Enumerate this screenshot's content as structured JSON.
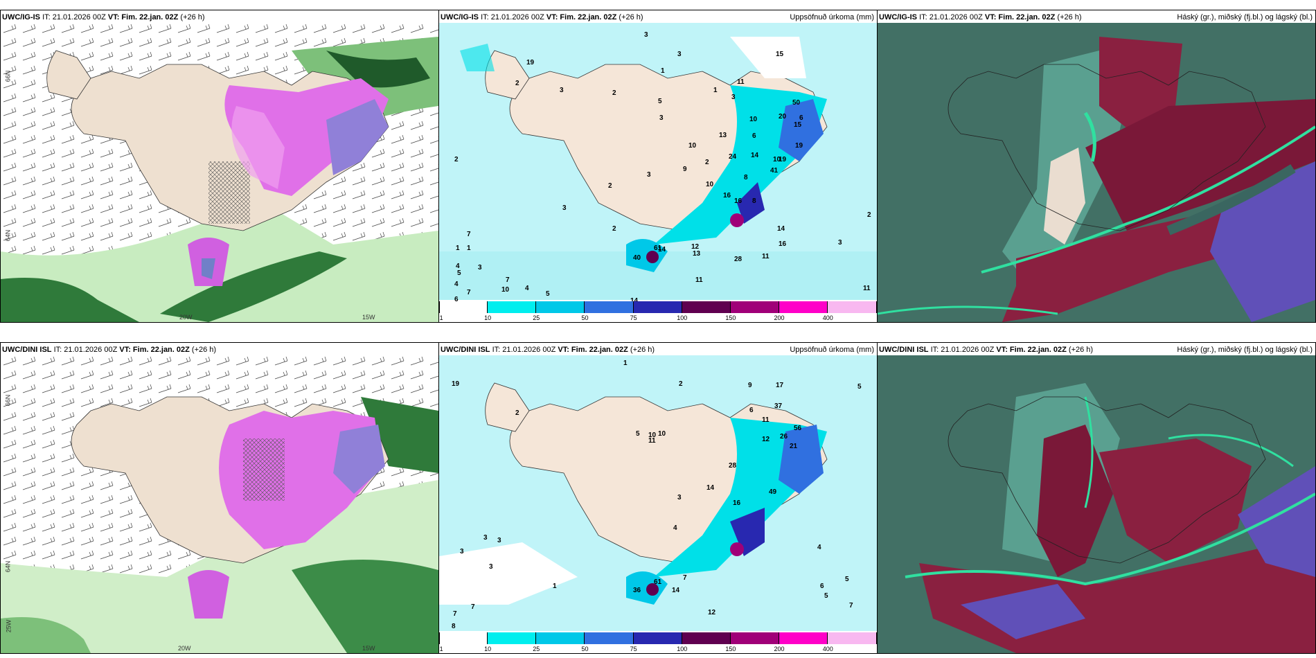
{
  "rows": [
    {
      "model": "UWC/IG-IS",
      "it": "IT: 21.01.2026 00Z",
      "vt_label": "VT:",
      "vt": "Fim. 22.jan. 02Z",
      "lead": "(+26 h)",
      "precip_title": "Uppsöfnuð úrkoma (mm)",
      "cloud_title": "Háský (gr.), miðský (fj.bl.) og lágský (bl.)"
    },
    {
      "model": "UWC/DINI ISL",
      "it": "IT: 21.01.2026 00Z",
      "vt_label": "VT:",
      "vt": "Fim. 22.jan. 02Z",
      "lead": "(+26 h)",
      "precip_title": "Uppsöfnuð úrkoma (mm)",
      "cloud_title": "Háský (gr.), miðský (fj.bl.) og lágský (bl.)"
    }
  ],
  "axis_labels": {
    "lat66": "66N",
    "lat64": "64N",
    "lon20": "20W",
    "lon15": "15W",
    "lon25": "25W"
  },
  "colorbar": {
    "ticks": [
      "1",
      "10",
      "25",
      "50",
      "75",
      "100",
      "150",
      "200",
      "400"
    ],
    "colors": [
      "#ffffff",
      "#00eeee",
      "#00c8e8",
      "#3070e0",
      "#2828b0",
      "#600050",
      "#a00078",
      "#ff00c8",
      "#f8b8f0"
    ]
  },
  "precip_values_top": [
    "2",
    "19",
    "2",
    "3",
    "3",
    "1",
    "3",
    "15",
    "5",
    "3",
    "6",
    "1",
    "3",
    "2",
    "3",
    "7",
    "8",
    "9",
    "10",
    "11",
    "10",
    "13",
    "11",
    "10",
    "6",
    "24",
    "14",
    "20",
    "50",
    "2",
    "2",
    "15",
    "19",
    "3",
    "16",
    "10",
    "16",
    "8",
    "41",
    "19",
    "2",
    "14",
    "16",
    "28",
    "13",
    "12",
    "1",
    "11",
    "5",
    "4",
    "4",
    "3",
    "10",
    "7",
    "6",
    "7",
    "5",
    "4",
    "14",
    "40",
    "61",
    "3",
    "1",
    "2",
    "14",
    "11"
  ],
  "precip_values_bottom": [
    "1",
    "2",
    "10",
    "5",
    "17",
    "9",
    "19",
    "10",
    "11",
    "26",
    "56",
    "28",
    "21",
    "12",
    "49",
    "37",
    "3",
    "6",
    "5",
    "11",
    "2",
    "4",
    "3",
    "7",
    "3",
    "1",
    "3",
    "3",
    "7",
    "8",
    "14",
    "16",
    "36",
    "61",
    "14",
    "7",
    "12",
    "6",
    "5",
    "4",
    "5",
    "7"
  ]
}
